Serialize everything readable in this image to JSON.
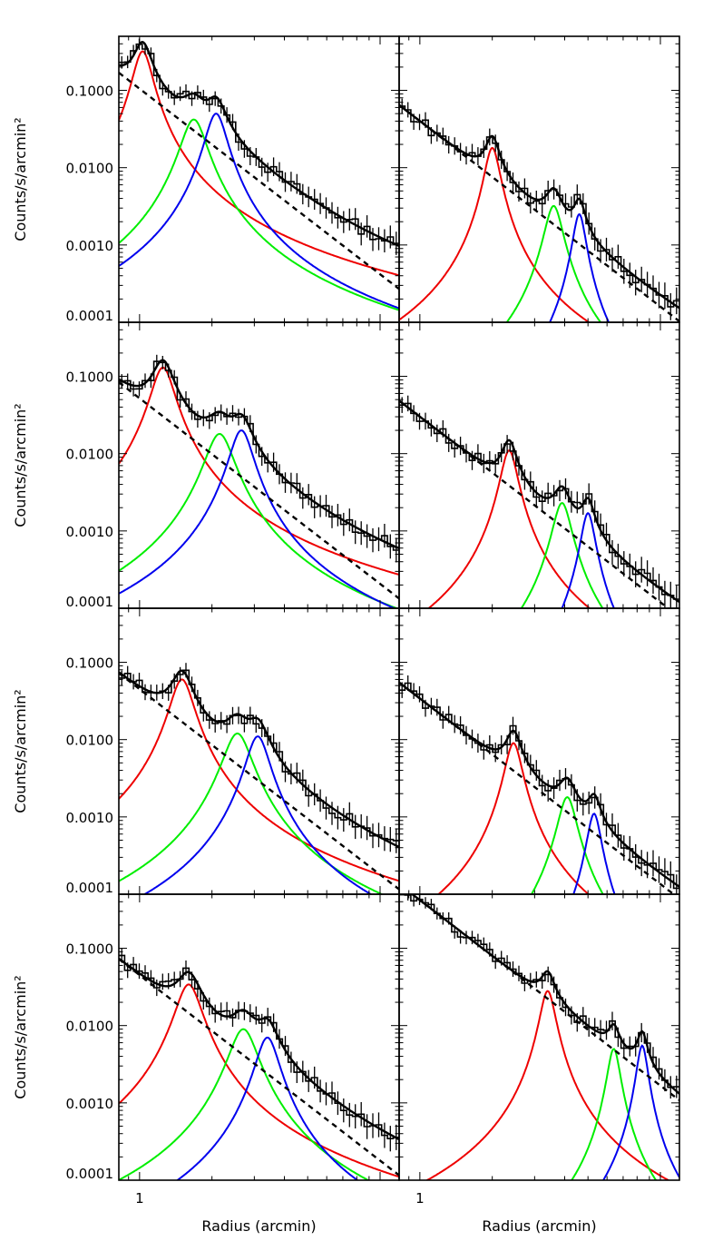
{
  "figure": {
    "ylabel": "Counts/s/arcmin²",
    "xlabel": "Radius (arcmin)"
  },
  "axes": {
    "y_scale": "log",
    "ylim": [
      0.0001,
      0.5
    ],
    "ytick_labels": [
      "0.1000",
      "0.0100",
      "0.0010",
      "0.0001"
    ],
    "ytick_values": [
      0.1,
      0.01,
      0.001,
      0.0001
    ],
    "xtick_labels": [
      "1"
    ],
    "xtick_values": [
      1
    ],
    "x_scale": "log",
    "xlim": [
      0.82,
      12
    ]
  },
  "colors": {
    "data": "#000000",
    "model_total": "#000000",
    "background": "#000000",
    "peak1": "#ee0000",
    "peak2": "#00ee00",
    "peak3": "#0000ee"
  },
  "chart_data": [
    {
      "type": "line",
      "panel": "left-1",
      "base_a": 0.105,
      "base_slope": -2.4,
      "peaks": [
        {
          "name": "red",
          "x": 1.03,
          "amp": 0.32,
          "w": 0.038
        },
        {
          "name": "green",
          "x": 1.68,
          "amp": 0.042,
          "w": 0.05
        },
        {
          "name": "blue",
          "x": 2.08,
          "amp": 0.05,
          "w": 0.042
        }
      ]
    },
    {
      "type": "line",
      "panel": "right-1",
      "base_a": 0.04,
      "base_slope": -2.4,
      "peaks": [
        {
          "name": "red",
          "x": 2.0,
          "amp": 0.018,
          "w": 0.03
        },
        {
          "name": "green",
          "x": 3.6,
          "amp": 0.0032,
          "w": 0.035
        },
        {
          "name": "blue",
          "x": 4.6,
          "amp": 0.0025,
          "w": 0.025
        }
      ]
    },
    {
      "type": "line",
      "panel": "left-2",
      "base_a": 0.052,
      "base_slope": -2.4,
      "peaks": [
        {
          "name": "red",
          "x": 1.25,
          "amp": 0.13,
          "w": 0.045
        },
        {
          "name": "green",
          "x": 2.15,
          "amp": 0.018,
          "w": 0.055
        },
        {
          "name": "blue",
          "x": 2.65,
          "amp": 0.02,
          "w": 0.045
        }
      ]
    },
    {
      "type": "line",
      "panel": "right-2",
      "base_a": 0.03,
      "base_slope": -2.4,
      "peaks": [
        {
          "name": "red",
          "x": 2.35,
          "amp": 0.011,
          "w": 0.032
        },
        {
          "name": "green",
          "x": 3.9,
          "amp": 0.0023,
          "w": 0.036
        },
        {
          "name": "blue",
          "x": 5.0,
          "amp": 0.0017,
          "w": 0.027
        }
      ]
    },
    {
      "type": "line",
      "panel": "left-3",
      "base_a": 0.045,
      "base_slope": -2.4,
      "peaks": [
        {
          "name": "red",
          "x": 1.5,
          "amp": 0.06,
          "w": 0.045
        },
        {
          "name": "green",
          "x": 2.55,
          "amp": 0.012,
          "w": 0.055
        },
        {
          "name": "blue",
          "x": 3.1,
          "amp": 0.011,
          "w": 0.045
        }
      ]
    },
    {
      "type": "line",
      "panel": "right-3",
      "base_a": 0.034,
      "base_slope": -2.4,
      "peaks": [
        {
          "name": "red",
          "x": 2.45,
          "amp": 0.009,
          "w": 0.033
        },
        {
          "name": "green",
          "x": 4.1,
          "amp": 0.0018,
          "w": 0.036
        },
        {
          "name": "blue",
          "x": 5.3,
          "amp": 0.0011,
          "w": 0.027
        }
      ]
    },
    {
      "type": "line",
      "panel": "left-4",
      "base_a": 0.045,
      "base_slope": -2.4,
      "peaks": [
        {
          "name": "red",
          "x": 1.6,
          "amp": 0.034,
          "w": 0.05
        },
        {
          "name": "green",
          "x": 2.7,
          "amp": 0.009,
          "w": 0.055
        },
        {
          "name": "blue",
          "x": 3.4,
          "amp": 0.007,
          "w": 0.045
        }
      ]
    },
    {
      "type": "line",
      "panel": "right-4",
      "base_a": 0.42,
      "base_slope": -2.4,
      "peaks": [
        {
          "name": "red",
          "x": 3.4,
          "amp": 0.028,
          "w": 0.03
        },
        {
          "name": "green",
          "x": 6.4,
          "amp": 0.005,
          "w": 0.025
        },
        {
          "name": "blue",
          "x": 8.4,
          "amp": 0.0055,
          "w": 0.022
        }
      ]
    }
  ]
}
